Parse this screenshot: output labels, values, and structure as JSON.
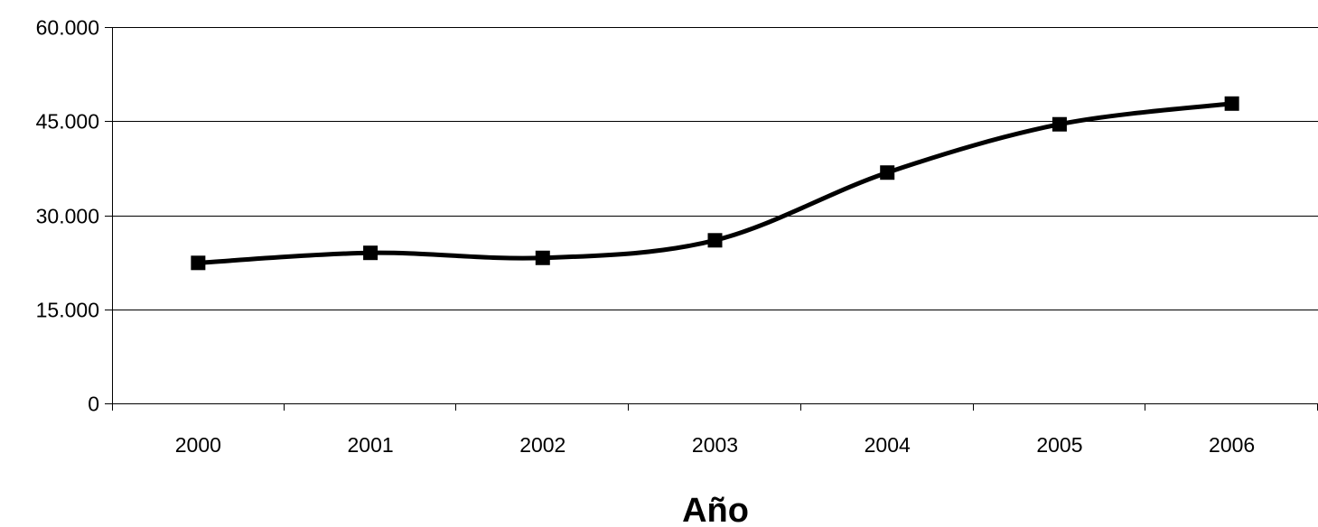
{
  "chart_data": {
    "type": "line",
    "title": "",
    "xlabel": "Año",
    "ylabel": "",
    "categories": [
      "2000",
      "2001",
      "2002",
      "2003",
      "2004",
      "2005",
      "2006"
    ],
    "series": [
      {
        "values": [
          22400,
          24000,
          23200,
          26000,
          36800,
          44500,
          47800
        ]
      }
    ],
    "ylim": [
      0,
      60000
    ],
    "yticks": [
      0,
      15000,
      30000,
      45000,
      60000
    ],
    "ytick_labels": [
      "0",
      "15.000",
      "30.000",
      "45.000",
      "60.000"
    ],
    "grid": true,
    "legend": "none",
    "smooth": true,
    "marker": "square",
    "colors": {
      "line": "#000000",
      "grid": "#000000",
      "background": "#ffffff"
    }
  }
}
